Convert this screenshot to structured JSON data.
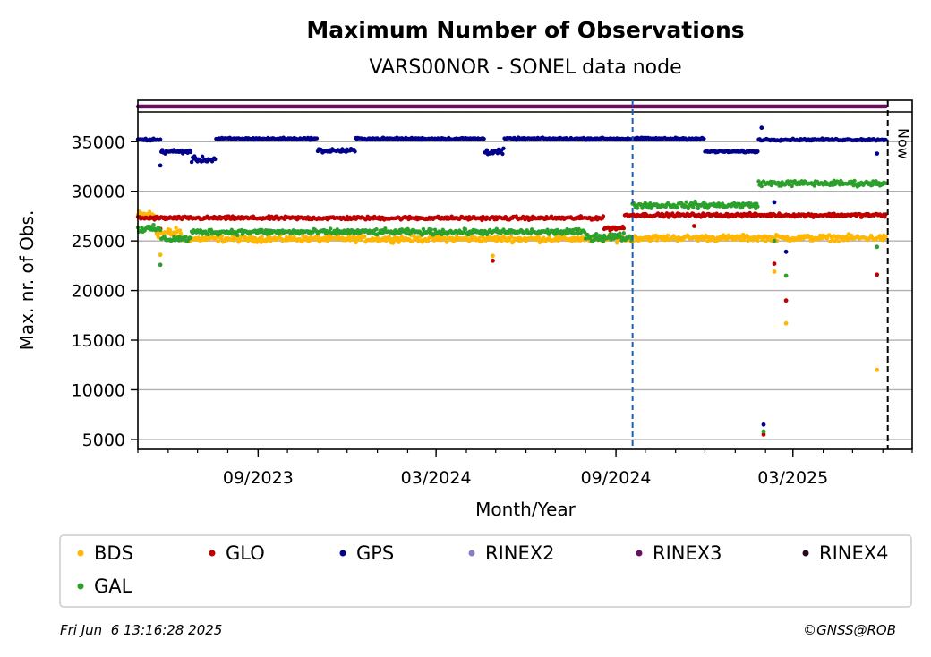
{
  "chart_data": {
    "type": "scatter",
    "title": "Maximum Number of Observations",
    "subtitle": "VARS00NOR - SONEL data node",
    "xlabel": "Month/Year",
    "ylabel": "Max. nr. of Obs.",
    "xlim": [
      "2023-05-01",
      "2025-07-01"
    ],
    "ylim": [
      4000,
      38000
    ],
    "x_ticks": [
      {
        "date": "2023-09-01",
        "label": "09/2023"
      },
      {
        "date": "2024-03-01",
        "label": "03/2024"
      },
      {
        "date": "2024-09-01",
        "label": "09/2024"
      },
      {
        "date": "2025-03-01",
        "label": "03/2025"
      }
    ],
    "y_ticks": [
      5000,
      10000,
      15000,
      20000,
      25000,
      30000,
      35000
    ],
    "grid": "horizontal",
    "now_label": "Now",
    "now_date": "2025-06-06",
    "event_line_date": "2024-09-18",
    "legend_position": "below",
    "series": [
      {
        "name": "BDS",
        "color": "#ffb703",
        "segments": [
          {
            "from": "2023-05-01",
            "to": "2023-05-20",
            "level": 27600,
            "jitter": 700
          },
          {
            "from": "2023-05-20",
            "to": "2023-06-15",
            "level": 25800,
            "jitter": 700
          },
          {
            "from": "2023-06-15",
            "to": "2024-09-18",
            "level": 25200,
            "jitter": 450
          },
          {
            "from": "2024-09-18",
            "to": "2025-06-05",
            "level": 25300,
            "jitter": 450
          }
        ],
        "outliers": [
          [
            "2023-05-24",
            23600
          ],
          [
            "2024-04-28",
            23500
          ],
          [
            "2025-01-30",
            5700
          ],
          [
            "2025-02-10",
            21900
          ],
          [
            "2025-02-22",
            16700
          ],
          [
            "2025-05-26",
            12000
          ]
        ]
      },
      {
        "name": "GLO",
        "color": "#c00000",
        "segments": [
          {
            "from": "2023-05-01",
            "to": "2024-08-20",
            "level": 27300,
            "jitter": 250
          },
          {
            "from": "2024-08-20",
            "to": "2024-09-10",
            "level": 26300,
            "jitter": 300
          },
          {
            "from": "2024-09-10",
            "to": "2025-06-05",
            "level": 27600,
            "jitter": 250
          }
        ],
        "outliers": [
          [
            "2023-05-24",
            26200
          ],
          [
            "2024-04-28",
            23000
          ],
          [
            "2024-11-20",
            26500
          ],
          [
            "2025-01-30",
            5500
          ],
          [
            "2025-02-10",
            22700
          ],
          [
            "2025-02-22",
            19000
          ],
          [
            "2025-05-26",
            21600
          ]
        ]
      },
      {
        "name": "GPS",
        "color": "#00008b",
        "segments": [
          {
            "from": "2023-05-01",
            "to": "2023-05-25",
            "level": 35200,
            "jitter": 200
          },
          {
            "from": "2023-05-25",
            "to": "2023-06-25",
            "level": 34000,
            "jitter": 300
          },
          {
            "from": "2023-06-25",
            "to": "2023-07-20",
            "level": 33200,
            "jitter": 400
          },
          {
            "from": "2023-07-20",
            "to": "2023-11-01",
            "level": 35300,
            "jitter": 150
          },
          {
            "from": "2023-11-01",
            "to": "2023-12-10",
            "level": 34100,
            "jitter": 300
          },
          {
            "from": "2023-12-10",
            "to": "2024-04-20",
            "level": 35300,
            "jitter": 150
          },
          {
            "from": "2024-04-20",
            "to": "2024-05-10",
            "level": 34000,
            "jitter": 400
          },
          {
            "from": "2024-05-10",
            "to": "2024-12-01",
            "level": 35300,
            "jitter": 150
          },
          {
            "from": "2024-12-01",
            "to": "2025-01-25",
            "level": 34000,
            "jitter": 150
          },
          {
            "from": "2025-01-25",
            "to": "2025-06-05",
            "level": 35200,
            "jitter": 150
          }
        ],
        "outliers": [
          [
            "2023-05-24",
            32600
          ],
          [
            "2025-01-28",
            36400
          ],
          [
            "2025-01-30",
            6500
          ],
          [
            "2025-02-10",
            28900
          ],
          [
            "2025-02-22",
            23900
          ],
          [
            "2025-05-26",
            33800
          ]
        ]
      },
      {
        "name": "RINEX2",
        "color": "#8a7dbd",
        "segments": [],
        "outliers": []
      },
      {
        "name": "RINEX3",
        "color": "#6b0f5e",
        "segments": [
          {
            "from": "2023-05-01",
            "to": "2025-06-05",
            "level": 38600,
            "jitter": 0
          }
        ],
        "outliers": []
      },
      {
        "name": "RINEX4",
        "color": "#2b0a20",
        "segments": [],
        "outliers": []
      },
      {
        "name": "GAL",
        "color": "#2ca02c",
        "segments": [
          {
            "from": "2023-05-01",
            "to": "2023-05-25",
            "level": 26200,
            "jitter": 500
          },
          {
            "from": "2023-05-25",
            "to": "2023-06-25",
            "level": 25200,
            "jitter": 450
          },
          {
            "from": "2023-06-25",
            "to": "2024-08-01",
            "level": 25900,
            "jitter": 400
          },
          {
            "from": "2024-08-01",
            "to": "2024-09-18",
            "level": 25400,
            "jitter": 600
          },
          {
            "from": "2024-09-18",
            "to": "2025-01-25",
            "level": 28600,
            "jitter": 450
          },
          {
            "from": "2025-01-25",
            "to": "2025-06-05",
            "level": 30800,
            "jitter": 400
          }
        ],
        "outliers": [
          [
            "2023-05-24",
            22600
          ],
          [
            "2025-01-30",
            5800
          ],
          [
            "2025-02-10",
            25000
          ],
          [
            "2025-02-22",
            21500
          ],
          [
            "2025-05-26",
            24400
          ]
        ]
      }
    ]
  },
  "footer": {
    "timestamp": "Fri Jun  6 13:16:28 2025",
    "credit": "©GNSS@ROB"
  }
}
